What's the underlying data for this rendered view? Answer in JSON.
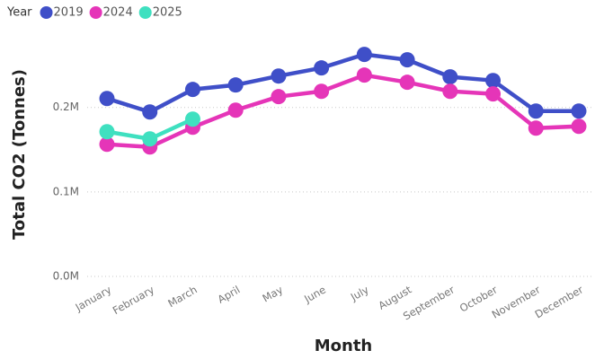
{
  "chart_data": {
    "type": "line",
    "legend_title": "Year",
    "x_label": "Month",
    "y_label": "Total CO2 (Tonnes)",
    "categories": [
      "January",
      "February",
      "March",
      "April",
      "May",
      "June",
      "July",
      "August",
      "September",
      "October",
      "November",
      "December"
    ],
    "series": [
      {
        "name": "2019",
        "color": "#3f4fc8",
        "values": [
          210600,
          194700,
          221300,
          226600,
          237200,
          246800,
          262800,
          256400,
          236200,
          231900,
          195700,
          195700
        ]
      },
      {
        "name": "2024",
        "color": "#e535b8",
        "values": [
          156400,
          153200,
          176600,
          196800,
          212800,
          219100,
          238300,
          229800,
          219100,
          216000,
          175500,
          177700
        ]
      },
      {
        "name": "2025",
        "color": "#3fe0c0",
        "values": [
          171300,
          162800,
          186200,
          null,
          null,
          null,
          null,
          null,
          null,
          null,
          null,
          null
        ]
      }
    ],
    "ylim": [
      0,
      290000
    ],
    "yticks": [
      {
        "value": 0,
        "label": "0.0M"
      },
      {
        "value": 100000,
        "label": "0.1M"
      },
      {
        "value": 200000,
        "label": "0.2M"
      }
    ],
    "grid": true
  }
}
